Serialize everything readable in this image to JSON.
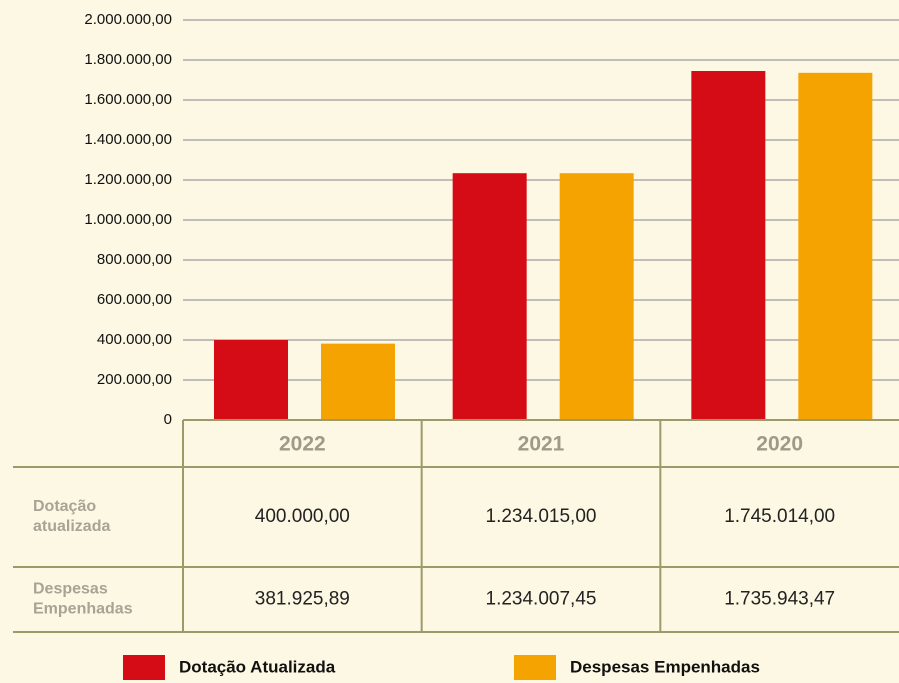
{
  "chart_data": {
    "type": "bar",
    "categories": [
      "2022",
      "2021",
      "2020"
    ],
    "series": [
      {
        "name": "Dotação Atualizada",
        "color": "#d50c16",
        "values": [
          400000,
          1234015,
          1745014
        ],
        "value_labels": [
          "400.000,00",
          "1.234.015,00",
          "1.745.014,00"
        ]
      },
      {
        "name": "Despesas Empenhadas",
        "color": "#f5a300",
        "values": [
          381925.89,
          1234007.45,
          1735943.47
        ],
        "value_labels": [
          "381.925,89",
          "1.234.007,45",
          "1.735.943,47"
        ]
      }
    ],
    "row_labels": [
      "Dotação atualizada",
      "Despesas Empenhadas"
    ],
    "ylim": [
      0,
      2000000
    ],
    "yticks": [
      0,
      {
        "value": 200000,
        "label": "200.000,00"
      },
      {
        "value": 400000,
        "label": "400.000,00"
      },
      {
        "value": 600000,
        "label": "600.000,00"
      },
      {
        "value": 800000,
        "label": "800.000,00"
      },
      {
        "value": 1000000,
        "label": "1.000.000,00"
      },
      {
        "value": 1200000,
        "label": "1.200.000,00"
      },
      {
        "value": 1400000,
        "label": "1.400.000,00"
      },
      {
        "value": 1600000,
        "label": "1.600.000,00"
      },
      {
        "value": 1800000,
        "label": "1.800.000,00"
      },
      {
        "value": 2000000,
        "label": "2.000.000,00"
      }
    ],
    "grid": true
  }
}
